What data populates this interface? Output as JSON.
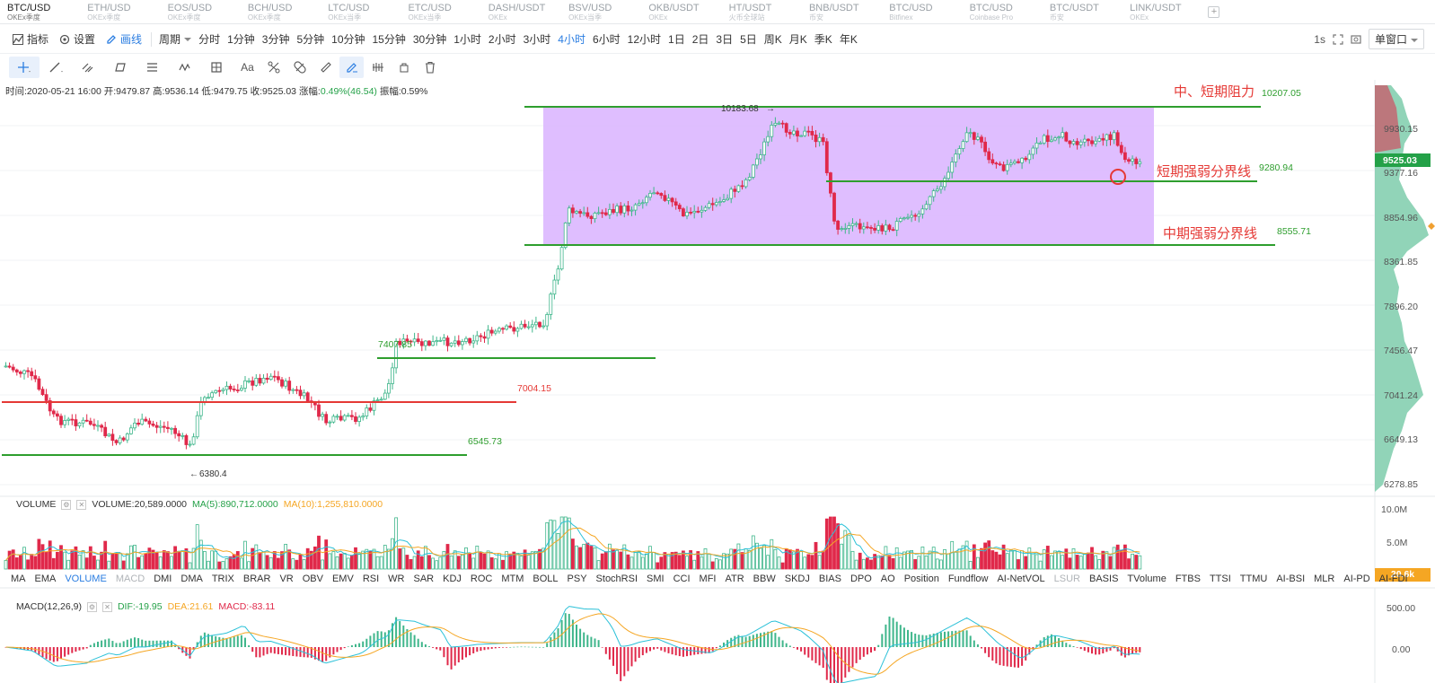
{
  "tabs": [
    {
      "symbol": "BTC/USD",
      "exchange": "OKEx季度",
      "active": true
    },
    {
      "symbol": "ETH/USD",
      "exchange": "OKEx季度"
    },
    {
      "symbol": "EOS/USD",
      "exchange": "OKEx季度"
    },
    {
      "symbol": "BCH/USD",
      "exchange": "OKEx季度"
    },
    {
      "symbol": "LTC/USD",
      "exchange": "OKEx当季"
    },
    {
      "symbol": "ETC/USD",
      "exchange": "OKEx当季"
    },
    {
      "symbol": "DASH/USDT",
      "exchange": "OKEx"
    },
    {
      "symbol": "BSV/USD",
      "exchange": "OKEx当季"
    },
    {
      "symbol": "OKB/USDT",
      "exchange": "OKEx"
    },
    {
      "symbol": "HT/USDT",
      "exchange": "火币全球站"
    },
    {
      "symbol": "BNB/USDT",
      "exchange": "币安"
    },
    {
      "symbol": "BTC/USD",
      "exchange": "Bitfinex"
    },
    {
      "symbol": "BTC/USD",
      "exchange": "Coinbase Pro"
    },
    {
      "symbol": "BTC/USDT",
      "exchange": "币安"
    },
    {
      "symbol": "LINK/USDT",
      "exchange": "OKEx"
    }
  ],
  "toolbar": {
    "indicator_label": "指标",
    "settings_label": "设置",
    "draw_label": "画线",
    "period_label": "周期",
    "periods": [
      "分时",
      "1分钟",
      "3分钟",
      "5分钟",
      "10分钟",
      "15分钟",
      "30分钟",
      "1小时",
      "2小时",
      "3小时",
      "4小时",
      "6小时",
      "12小时",
      "1日",
      "2日",
      "3日",
      "5日",
      "周K",
      "月K",
      "季K",
      "年K"
    ],
    "active_period": "4小时",
    "refresh": "1s",
    "window_label": "单窗口"
  },
  "infobar": {
    "time": "时间:2020-05-21 16:00",
    "open": "开:9479.87",
    "high": "高:9536.14",
    "low": "低:9479.75",
    "close": "收:9525.03",
    "change_label": "涨幅:",
    "change_value": "0.49%(46.54)",
    "amplitude": "振幅:0.59%"
  },
  "price_axis": {
    "labels": [
      "9930.15",
      "9377.16",
      "8854.96",
      "8361.85",
      "7896.20",
      "7456.47",
      "7041.24",
      "6649.13",
      "6278.85"
    ],
    "current_price": "9525.03"
  },
  "annotations": {
    "resistance_text": "中、短期阻力",
    "resistance_value": "10207.05",
    "short_text": "短期强弱分界线",
    "short_value": "9280.94",
    "mid_text": "中期强弱分界线",
    "mid_value": "8555.71",
    "level_7400": "7407.85",
    "level_7004": "7004.15",
    "level_6545": "6545.73",
    "high_mark": "10183.68",
    "low_mark": "6380.4"
  },
  "volume": {
    "name": "VOLUME",
    "value": "VOLUME:20,589.0000",
    "ma5": "MA(5):890,712.0000",
    "ma10": "MA(10):1,255,810.0000",
    "axis": [
      "10.0M",
      "5.0M"
    ],
    "current": "20.6k"
  },
  "indicator_tabs": [
    "MA",
    "EMA",
    "VOLUME",
    "MACD",
    "DMI",
    "DMA",
    "TRIX",
    "BRAR",
    "VR",
    "OBV",
    "EMV",
    "RSI",
    "WR",
    "SAR",
    "KDJ",
    "ROC",
    "MTM",
    "BOLL",
    "PSY",
    "StochRSI",
    "SMI",
    "CCI",
    "MFI",
    "ATR",
    "BBW",
    "SKDJ",
    "BIAS",
    "DPO",
    "AO",
    "Position",
    "Fundflow",
    "AI-NetVOL",
    "LSUR",
    "BASIS",
    "TVolume",
    "FTBS",
    "TTSI",
    "TTMU",
    "AI-BSI",
    "MLR",
    "AI-PD",
    "AI-FDI"
  ],
  "active_indicator": "VOLUME",
  "dim_indicators": [
    "MACD",
    "LSUR"
  ],
  "macd": {
    "name": "MACD(12,26,9)",
    "dif": "DIF:-19.95",
    "dea": "DEA:21.61",
    "macd": "MACD:-83.11",
    "axis": [
      "500.00",
      "0.00"
    ]
  },
  "colors": {
    "up": "#3fb68b",
    "down": "#e0294a",
    "accent": "#2a7de1",
    "zone": "#d9b3ff",
    "support_line": "#2e9e2e",
    "resistance_red": "#e53935"
  }
}
